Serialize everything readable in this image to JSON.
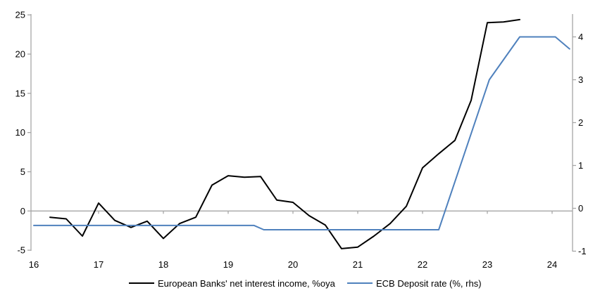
{
  "chart_data": {
    "type": "line",
    "title": "",
    "xlabel": "",
    "ylabel_left": "",
    "ylabel_right": "",
    "grid": "zero-line-only",
    "legend_position": "bottom",
    "background_color": "#ffffff",
    "axis_color": "#a6a6a6",
    "text_color": "#000000",
    "x_axis": {
      "tick_values": [
        16,
        17,
        18,
        19,
        20,
        21,
        22,
        23,
        24
      ],
      "tick_labels": [
        "16",
        "17",
        "18",
        "19",
        "20",
        "21",
        "22",
        "23",
        "24"
      ],
      "range": [
        15.95,
        24.32
      ]
    },
    "y_axis_left": {
      "tick_values": [
        -5,
        0,
        5,
        10,
        15,
        20,
        25
      ],
      "tick_labels": [
        "-5",
        "0",
        "5",
        "10",
        "15",
        "20",
        "25"
      ],
      "range": [
        -5,
        25.1
      ]
    },
    "y_axis_right": {
      "tick_values": [
        -1,
        0,
        1,
        2,
        3,
        4
      ],
      "tick_labels": [
        "-1",
        "0",
        "1",
        "2",
        "3",
        "4"
      ],
      "range": [
        -1,
        4.52
      ]
    },
    "series": [
      {
        "name": "European Banks' net interest income, %oya",
        "axis": "left",
        "color": "#000000",
        "x": [
          16.25,
          16.5,
          16.75,
          17.0,
          17.25,
          17.5,
          17.75,
          18.0,
          18.25,
          18.5,
          18.75,
          19.0,
          19.25,
          19.5,
          19.75,
          20.0,
          20.25,
          20.5,
          20.75,
          21.0,
          21.25,
          21.5,
          21.75,
          22.0,
          22.25,
          22.5,
          22.75,
          23.0,
          23.25,
          23.5
        ],
        "values": [
          -0.8,
          -1.0,
          -3.2,
          1.0,
          -1.2,
          -2.1,
          -1.3,
          -3.5,
          -1.6,
          -0.8,
          3.3,
          4.5,
          4.3,
          4.4,
          1.4,
          1.1,
          -0.6,
          -1.8,
          -4.8,
          -4.6,
          -3.2,
          -1.6,
          0.6,
          5.5,
          7.3,
          9.0,
          14.1,
          24.0,
          24.1,
          24.4
        ]
      },
      {
        "name": "ECB Deposit rate (%, rhs)",
        "axis": "right",
        "color": "#4f81bd",
        "x": [
          16.0,
          19.4,
          19.55,
          22.25,
          23.03,
          23.5,
          24.05,
          24.27
        ],
        "values": [
          -0.4,
          -0.4,
          -0.5,
          -0.5,
          3.0,
          4.0,
          4.0,
          3.72
        ]
      }
    ]
  }
}
